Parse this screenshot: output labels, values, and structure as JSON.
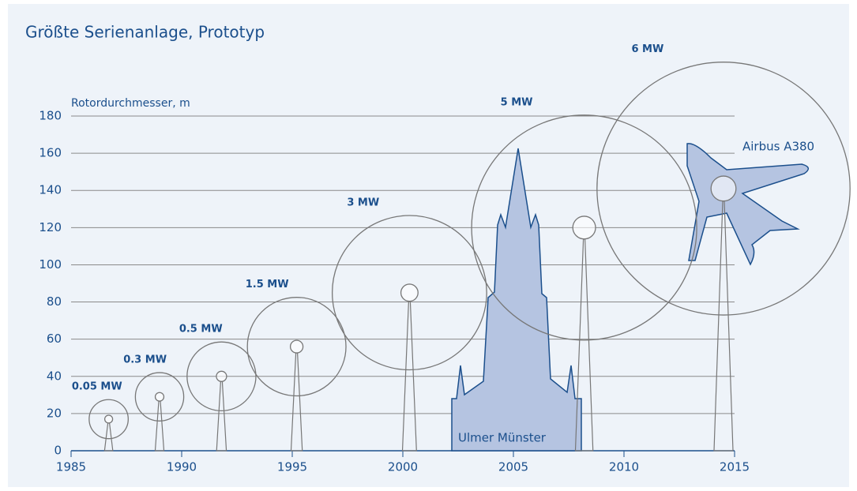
{
  "chart_data": {
    "type": "turbines",
    "title": "Größte Serienanlage, Prototyp",
    "y_label": "Rotordurchmesser, m",
    "xlim": [
      1985,
      2015
    ],
    "xticks": [
      1985,
      1990,
      1995,
      2000,
      2005,
      2010,
      2015
    ],
    "ylim": [
      0,
      180
    ],
    "yticks": [
      0,
      20,
      40,
      60,
      80,
      100,
      120,
      140,
      160,
      180
    ],
    "grid": true,
    "color": "#777777",
    "labels": [
      "0.05 MW",
      "0.3 MW",
      "0.5 MW",
      "1.5 MW",
      "3 MW",
      "5 MW",
      "6 MW"
    ],
    "x": [
      1986.7,
      1989.0,
      1991.8,
      1995.2,
      2000.3,
      2008.2,
      2014.5
    ],
    "hub_height": [
      17,
      29,
      40,
      56,
      85,
      120,
      141
    ],
    "rotor_diameter": [
      21,
      26,
      37,
      53,
      83,
      121,
      136
    ],
    "annotations": [
      "Ulmer Münster",
      "Airbus A380"
    ]
  }
}
